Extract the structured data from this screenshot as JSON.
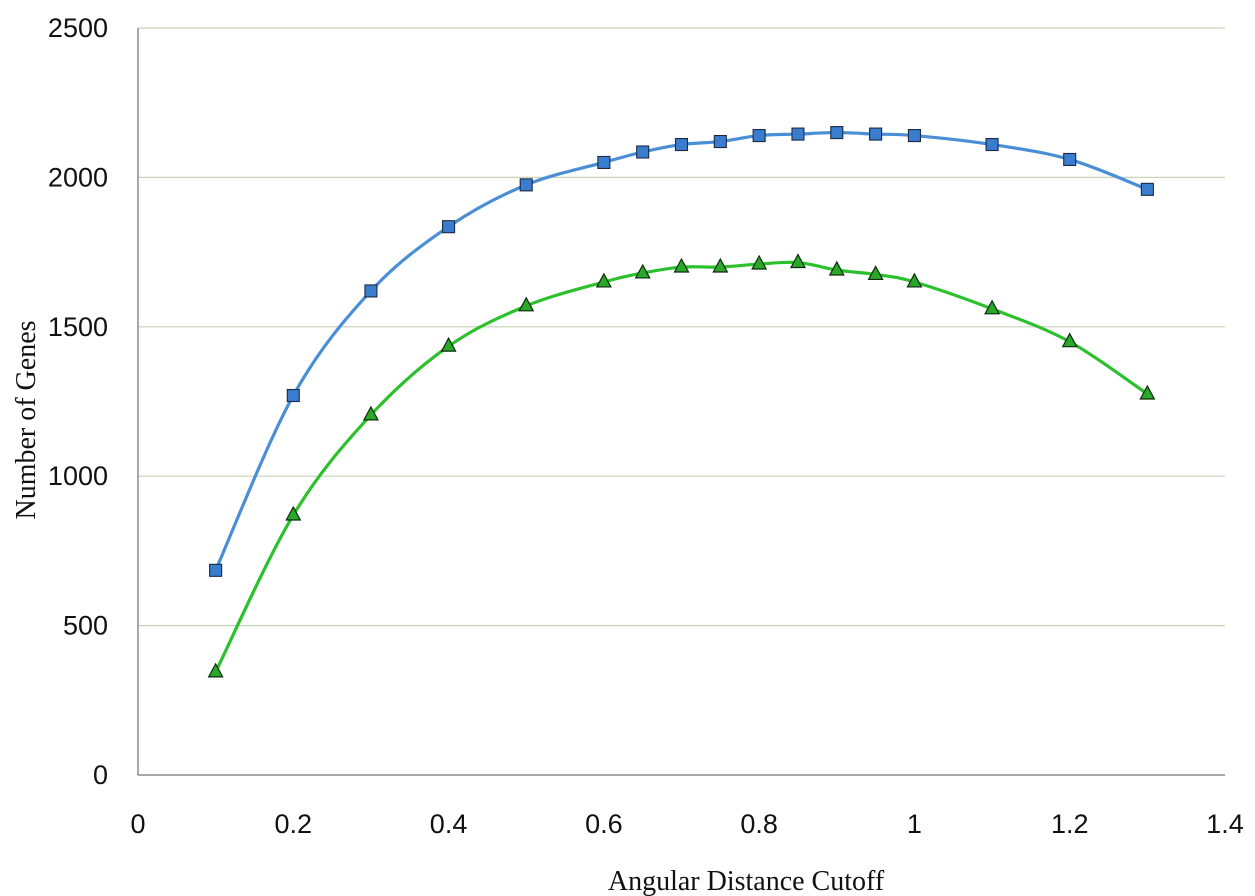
{
  "chart_data": {
    "type": "line",
    "title": "",
    "xlabel": "Angular Distance Cutoff",
    "ylabel": "Number of Genes",
    "xlim": [
      0,
      1.4
    ],
    "ylim": [
      0,
      2500
    ],
    "x_ticks": [
      "0",
      "0.2",
      "0.4",
      "0.6",
      "0.8",
      "1",
      "1.2",
      "1.4"
    ],
    "y_ticks": [
      "0",
      "500",
      "1000",
      "1500",
      "2000",
      "2500"
    ],
    "grid": "horizontal",
    "legend": "none",
    "series": [
      {
        "marker": "square",
        "color": "#4a8fd6",
        "marker_color": "#3a7dcf",
        "x": [
          0.1,
          0.2,
          0.3,
          0.4,
          0.5,
          0.6,
          0.65,
          0.7,
          0.75,
          0.8,
          0.85,
          0.9,
          0.95,
          1.0,
          1.1,
          1.2,
          1.3
        ],
        "y": [
          685,
          1270,
          1620,
          1835,
          1975,
          2050,
          2085,
          2110,
          2120,
          2140,
          2145,
          2150,
          2145,
          2140,
          2110,
          2060,
          1960
        ]
      },
      {
        "marker": "triangle",
        "color": "#2cc12c",
        "marker_color": "#2aa82a",
        "x": [
          0.1,
          0.2,
          0.3,
          0.4,
          0.5,
          0.6,
          0.65,
          0.7,
          0.75,
          0.8,
          0.85,
          0.9,
          0.95,
          1.0,
          1.1,
          1.2,
          1.3
        ],
        "y": [
          345,
          870,
          1205,
          1435,
          1570,
          1650,
          1680,
          1700,
          1700,
          1710,
          1715,
          1690,
          1675,
          1650,
          1560,
          1450,
          1275
        ]
      }
    ]
  }
}
